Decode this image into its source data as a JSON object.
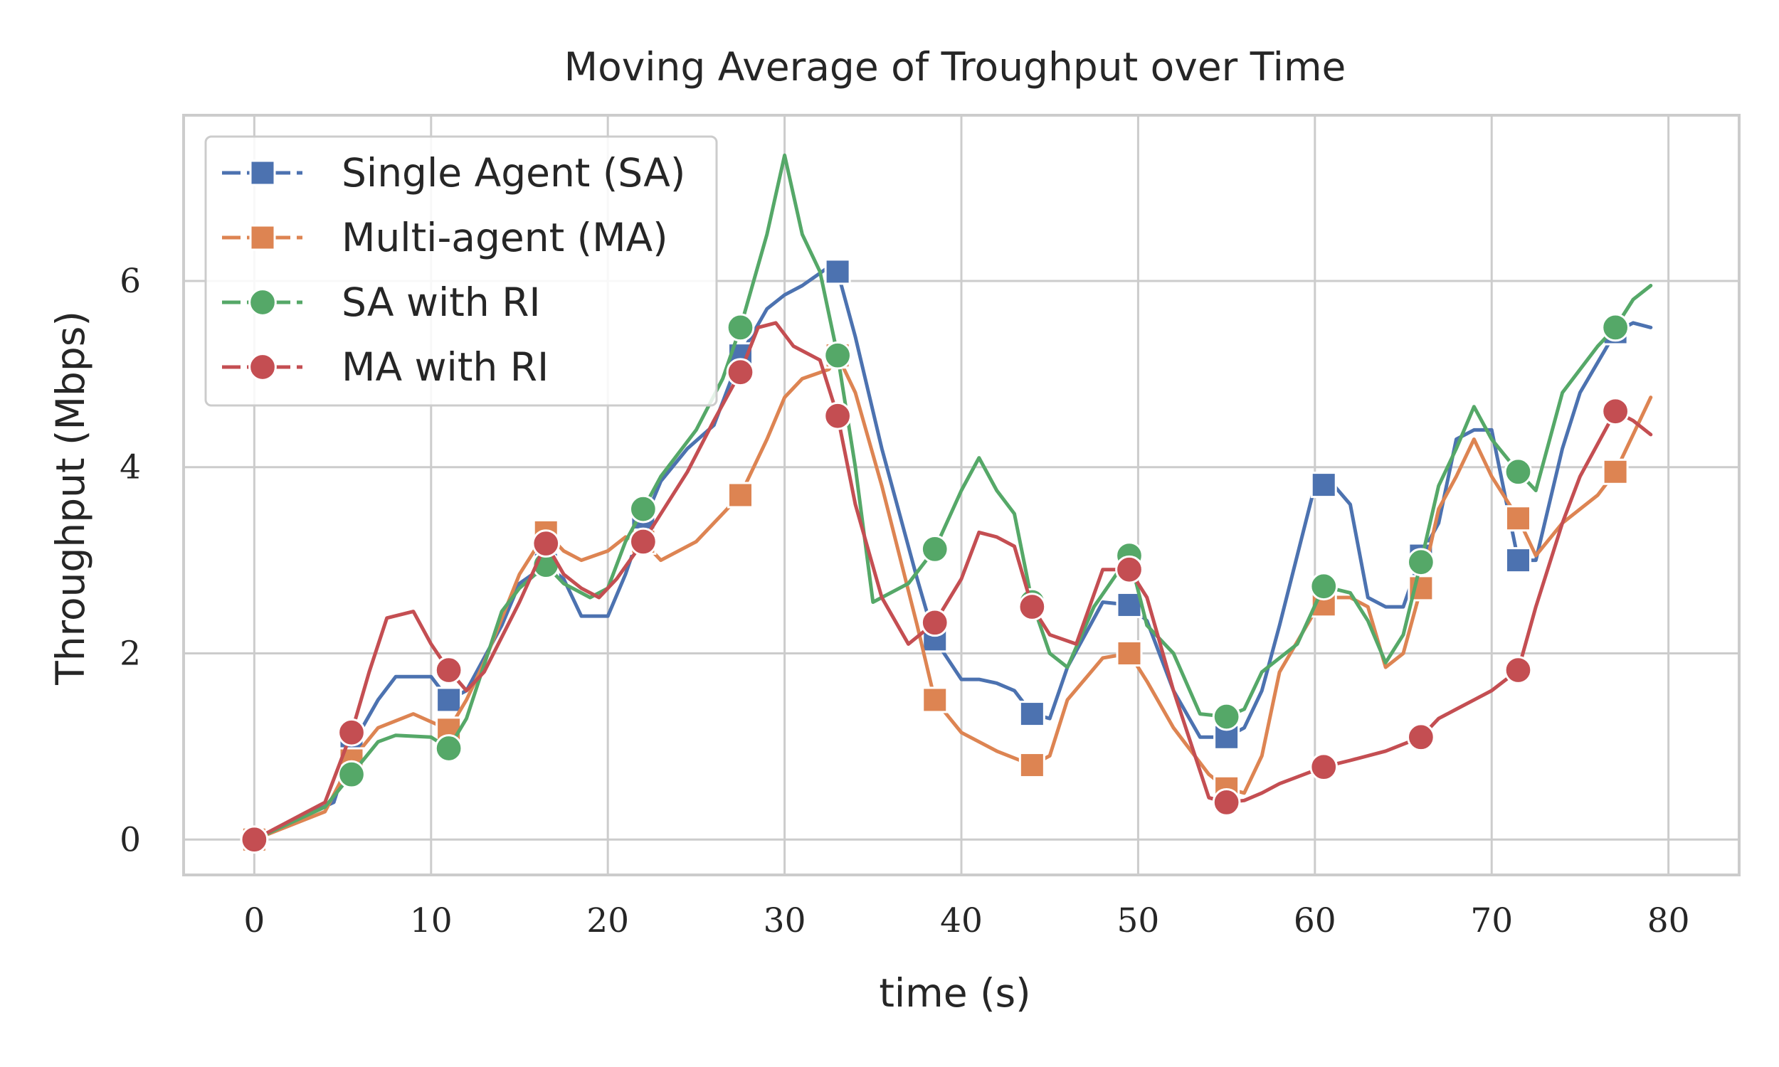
{
  "chart_data": {
    "type": "line",
    "title": "Moving Average of Troughput over Time",
    "xlabel": "time (s)",
    "ylabel": "Throughput (Mbps)",
    "xlim": [
      -4,
      84
    ],
    "ylim": [
      -0.38,
      7.78
    ],
    "xticks": [
      0,
      10,
      20,
      30,
      40,
      50,
      60,
      70,
      80
    ],
    "yticks": [
      0,
      2,
      4,
      6
    ],
    "grid": true,
    "legend_position": "top-left",
    "series": [
      {
        "name": "Single Agent (SA)",
        "color": "#4c72b0",
        "marker": "square",
        "x": [
          0,
          4.5,
          5.5,
          7,
          8,
          10,
          11,
          12,
          14,
          15,
          16.5,
          17.5,
          18.5,
          20,
          21,
          22,
          23,
          24.5,
          26,
          27.5,
          29,
          30,
          31,
          32.5,
          33,
          34,
          35.5,
          37.5,
          38.5,
          40,
          41,
          42,
          43,
          44,
          45,
          46,
          48,
          49.5,
          50.5,
          52,
          53.5,
          55,
          56,
          57,
          58,
          60,
          61,
          62,
          63,
          64,
          65,
          66,
          67,
          68,
          69,
          70,
          71.5,
          72.5,
          74,
          75,
          77,
          78,
          79
        ],
        "y": [
          0,
          0.4,
          1.0,
          1.5,
          1.75,
          1.75,
          1.5,
          1.6,
          2.3,
          2.75,
          2.95,
          2.8,
          2.4,
          2.4,
          2.85,
          3.4,
          3.85,
          4.2,
          4.45,
          5.2,
          5.7,
          5.85,
          5.95,
          6.15,
          6.1,
          5.4,
          4.2,
          2.8,
          2.15,
          1.72,
          1.72,
          1.68,
          1.6,
          1.35,
          1.3,
          1.85,
          2.55,
          2.52,
          2.35,
          1.6,
          1.1,
          1.1,
          1.2,
          1.6,
          2.3,
          3.8,
          3.82,
          3.6,
          2.6,
          2.5,
          2.5,
          3.05,
          3.4,
          4.3,
          4.4,
          4.4,
          3.0,
          3.0,
          4.2,
          4.8,
          5.45,
          5.55,
          5.5
        ]
      },
      {
        "name": "Multi-agent (MA)",
        "color": "#dd8452",
        "marker": "square",
        "x": [
          0,
          4,
          5.5,
          7,
          9,
          11,
          12,
          13,
          15,
          16.5,
          17.5,
          18.5,
          20,
          21,
          22,
          23,
          25,
          27.5,
          29,
          30,
          31,
          32.5,
          33,
          34,
          35.5,
          37.5,
          38.5,
          40,
          42,
          44,
          45,
          46,
          48,
          49.5,
          50.5,
          52,
          54,
          55,
          56,
          57,
          58,
          60,
          61,
          62,
          63,
          64,
          65,
          66,
          67,
          68,
          69,
          70,
          71.5,
          72.5,
          74,
          76,
          77,
          78,
          79
        ],
        "y": [
          0,
          0.3,
          0.85,
          1.2,
          1.35,
          1.18,
          1.5,
          1.9,
          2.85,
          3.3,
          3.1,
          3.0,
          3.1,
          3.25,
          3.2,
          3.0,
          3.2,
          3.7,
          4.3,
          4.75,
          4.95,
          5.05,
          5.2,
          4.8,
          3.8,
          2.3,
          1.5,
          1.15,
          0.95,
          0.8,
          0.9,
          1.5,
          1.95,
          2.0,
          1.7,
          1.2,
          0.7,
          0.55,
          0.5,
          0.9,
          1.8,
          2.45,
          2.6,
          2.6,
          2.5,
          1.85,
          2.0,
          2.7,
          3.55,
          3.9,
          4.3,
          3.9,
          3.45,
          3.05,
          3.4,
          3.7,
          3.95,
          4.35,
          4.75
        ]
      },
      {
        "name": "SA with RI",
        "color": "#55a868",
        "marker": "circle",
        "x": [
          0,
          4,
          5.5,
          7,
          8,
          10,
          11,
          12,
          14,
          15,
          16.5,
          17.5,
          19,
          20,
          21,
          22,
          23,
          25,
          26.5,
          27.5,
          29,
          30,
          31,
          32,
          33,
          34,
          35,
          37,
          38.5,
          40,
          41,
          42,
          43,
          44,
          45,
          46,
          47.5,
          49.5,
          50.5,
          52,
          53.5,
          55,
          56,
          57,
          59,
          60.5,
          62,
          63,
          64,
          65,
          66,
          67,
          68,
          69,
          70,
          71.5,
          72.5,
          74,
          76,
          77,
          78,
          79
        ],
        "y": [
          0,
          0.35,
          0.7,
          1.05,
          1.12,
          1.1,
          0.98,
          1.3,
          2.45,
          2.7,
          2.95,
          2.75,
          2.6,
          2.7,
          3.2,
          3.55,
          3.9,
          4.4,
          4.95,
          5.5,
          6.5,
          7.35,
          6.5,
          6.1,
          5.2,
          4.0,
          2.55,
          2.75,
          3.12,
          3.75,
          4.1,
          3.75,
          3.5,
          2.55,
          2.0,
          1.85,
          2.5,
          3.05,
          2.3,
          2.0,
          1.35,
          1.32,
          1.4,
          1.8,
          2.1,
          2.72,
          2.65,
          2.35,
          1.9,
          2.2,
          2.98,
          3.8,
          4.2,
          4.65,
          4.3,
          3.95,
          3.75,
          4.8,
          5.3,
          5.5,
          5.8,
          5.95
        ]
      },
      {
        "name": "MA with RI",
        "color": "#c44e52",
        "marker": "circle",
        "x": [
          0,
          4,
          5.5,
          6.5,
          7.5,
          9,
          10,
          11,
          12,
          13,
          15,
          16.5,
          17.5,
          18.5,
          19.5,
          20.5,
          22,
          23,
          24.5,
          26,
          27.5,
          28.5,
          29.5,
          30.5,
          32,
          33,
          34,
          35.5,
          37,
          38.5,
          40,
          41,
          42,
          43,
          44,
          45,
          46.5,
          48,
          49.5,
          50.5,
          52,
          54,
          55,
          56,
          57,
          58,
          60.5,
          62,
          64,
          66,
          67,
          68,
          69,
          70,
          71.5,
          72.5,
          74,
          75,
          77,
          78,
          79
        ],
        "y": [
          0,
          0.4,
          1.15,
          1.8,
          2.38,
          2.45,
          2.1,
          1.82,
          1.6,
          1.8,
          2.55,
          3.18,
          2.85,
          2.7,
          2.6,
          2.8,
          3.2,
          3.5,
          3.95,
          4.5,
          5.02,
          5.5,
          5.55,
          5.3,
          5.15,
          4.55,
          3.6,
          2.6,
          2.1,
          2.33,
          2.8,
          3.3,
          3.25,
          3.15,
          2.5,
          2.2,
          2.1,
          2.9,
          2.9,
          2.6,
          1.6,
          0.45,
          0.4,
          0.42,
          0.5,
          0.6,
          0.78,
          0.85,
          0.95,
          1.1,
          1.3,
          1.4,
          1.5,
          1.6,
          1.82,
          2.5,
          3.4,
          3.9,
          4.6,
          4.5,
          4.35
        ]
      }
    ]
  }
}
